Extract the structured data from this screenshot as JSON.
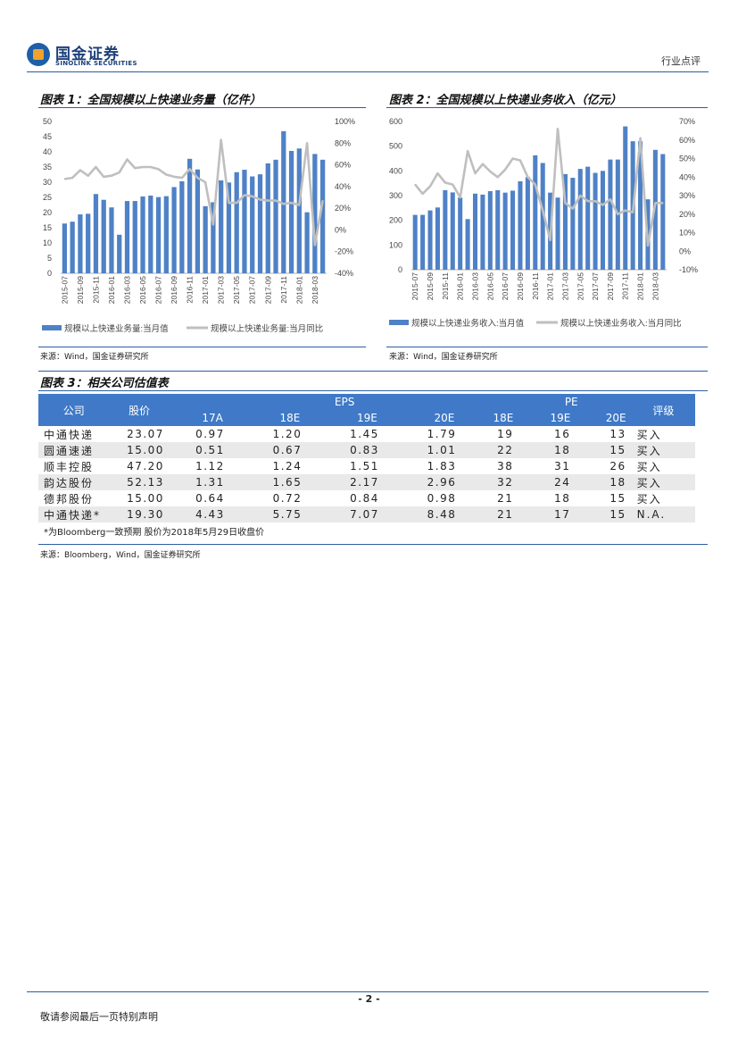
{
  "header": {
    "logo_cn": "国金证券",
    "logo_en": "SINOLINK SECURITIES",
    "doc_type": "行业点评"
  },
  "fig1": {
    "title": "图表 1：全国规模以上快递业务量（亿件）",
    "source": "来源：Wind，国金证券研究所",
    "chart_data": {
      "type": "bar",
      "categories": [
        "2015-07",
        "2015-08",
        "2015-09",
        "2015-10",
        "2015-11",
        "2015-12",
        "2016-01",
        "2016-02",
        "2016-03",
        "2016-04",
        "2016-05",
        "2016-06",
        "2016-07",
        "2016-08",
        "2016-09",
        "2016-10",
        "2016-11",
        "2016-12",
        "2017-01",
        "2017-02",
        "2017-03",
        "2017-04",
        "2017-05",
        "2017-06",
        "2017-07",
        "2017-08",
        "2017-09",
        "2017-10",
        "2017-11",
        "2017-12",
        "2018-01",
        "2018-02",
        "2018-03",
        "2018-04"
      ],
      "tick_labels": [
        "2015-07",
        "2015-09",
        "2015-11",
        "2016-01",
        "2016-03",
        "2016-05",
        "2016-07",
        "2016-09",
        "2016-11",
        "2017-01",
        "2017-03",
        "2017-05",
        "2017-07",
        "2017-09",
        "2017-11",
        "2018-01",
        "2018-03"
      ],
      "series": [
        {
          "name": "规模以上快递业务量:当月值",
          "axis": "left",
          "values": [
            16.4,
            17.0,
            19.4,
            19.6,
            26.1,
            24.2,
            21.7,
            12.7,
            23.8,
            23.8,
            25.3,
            25.6,
            25.1,
            25.4,
            28.4,
            30.3,
            37.7,
            34.2,
            22.1,
            23.4,
            30.6,
            29.9,
            33.3,
            34.1,
            31.9,
            32.6,
            36.2,
            37.4,
            46.8,
            40.3,
            41.1,
            20.1,
            39.3,
            37.4
          ]
        },
        {
          "name": "规模以上快递业务量:当月同比",
          "axis": "right",
          "values": [
            47,
            48,
            55,
            50,
            58,
            49,
            50,
            53,
            65,
            57,
            58,
            58,
            56,
            51,
            49,
            48,
            56,
            48,
            44,
            5,
            83,
            25,
            25,
            32,
            31,
            28,
            27,
            27,
            24,
            25,
            23,
            80,
            -14,
            27
          ]
        }
      ],
      "ylim_left": [
        0,
        50
      ],
      "yticks_left": [
        "50",
        "45",
        "40",
        "35",
        "30",
        "25",
        "20",
        "15",
        "10",
        "5",
        "0"
      ],
      "ylim_right": [
        -40,
        100
      ],
      "yticks_right": [
        "100%",
        "80%",
        "60%",
        "40%",
        "20%",
        "0%",
        "-20%",
        "-40%"
      ],
      "legend": [
        "规模以上快递业务量:当月值",
        "规模以上快递业务量:当月同比"
      ],
      "colors": {
        "bar": "#4f81c6",
        "line": "#bfbfbf"
      }
    }
  },
  "fig2": {
    "title": "图表 2：全国规模以上快递业务收入（亿元）",
    "source": "来源：Wind，国金证券研究所",
    "chart_data": {
      "type": "bar",
      "categories": [
        "2015-07",
        "2015-08",
        "2015-09",
        "2015-10",
        "2015-11",
        "2015-12",
        "2016-01",
        "2016-02",
        "2016-03",
        "2016-04",
        "2016-05",
        "2016-06",
        "2016-07",
        "2016-08",
        "2016-09",
        "2016-10",
        "2016-11",
        "2016-12",
        "2017-01",
        "2017-02",
        "2017-03",
        "2017-04",
        "2017-05",
        "2017-06",
        "2017-07",
        "2017-08",
        "2017-09",
        "2017-10",
        "2017-11",
        "2017-12",
        "2018-01",
        "2018-02",
        "2018-03",
        "2018-04"
      ],
      "tick_labels": [
        "2015-07",
        "2015-09",
        "2015-11",
        "2016-01",
        "2016-03",
        "2016-05",
        "2016-07",
        "2016-09",
        "2016-11",
        "2017-01",
        "2017-03",
        "2017-05",
        "2017-07",
        "2017-09",
        "2017-11",
        "2018-01",
        "2018-03"
      ],
      "series": [
        {
          "name": "规模以上快递业务收入:当月值",
          "axis": "left",
          "values": [
            222,
            222,
            240,
            252,
            322,
            313,
            292,
            205,
            308,
            304,
            318,
            322,
            312,
            320,
            358,
            375,
            463,
            432,
            312,
            292,
            387,
            372,
            408,
            417,
            392,
            400,
            446,
            446,
            580,
            520,
            520,
            285,
            485,
            468
          ]
        },
        {
          "name": "规模以上快递业务收入:当月同比",
          "axis": "right",
          "values": [
            36,
            31,
            35,
            42,
            37,
            36,
            29,
            54,
            42,
            47,
            43,
            40,
            44,
            50,
            49,
            40,
            36,
            22,
            6,
            66,
            26,
            23,
            30,
            27,
            27,
            25,
            28,
            20,
            22,
            21,
            61,
            3,
            26,
            26
          ]
        }
      ],
      "ylim_left": [
        0,
        600
      ],
      "yticks_left": [
        "600",
        "500",
        "400",
        "300",
        "200",
        "100",
        "0"
      ],
      "ylim_right": [
        -10,
        70
      ],
      "yticks_right": [
        "70%",
        "60%",
        "50%",
        "40%",
        "30%",
        "20%",
        "10%",
        "0%",
        "-10%"
      ],
      "legend": [
        "规模以上快递业务收入:当月值",
        "规模以上快递业务收入:当月同比"
      ],
      "colors": {
        "bar": "#4f81c6",
        "line": "#bfbfbf"
      }
    }
  },
  "fig3": {
    "title": "图表 3：相关公司估值表",
    "headers": {
      "company": "公司",
      "price": "股价",
      "eps": "EPS",
      "pe": "PE",
      "rating": "评级",
      "eps_years": [
        "17A",
        "18E",
        "19E",
        "20E"
      ],
      "pe_years": [
        "18E",
        "19E",
        "20E"
      ]
    },
    "rows": [
      {
        "company": "中通快递",
        "price": "23.07",
        "eps": [
          "0.97",
          "1.20",
          "1.45",
          "1.79"
        ],
        "pe": [
          "19",
          "16",
          "13"
        ],
        "rating": "买入"
      },
      {
        "company": "圆通速递",
        "price": "15.00",
        "eps": [
          "0.51",
          "0.67",
          "0.83",
          "1.01"
        ],
        "pe": [
          "22",
          "18",
          "15"
        ],
        "rating": "买入"
      },
      {
        "company": "顺丰控股",
        "price": "47.20",
        "eps": [
          "1.12",
          "1.24",
          "1.51",
          "1.83"
        ],
        "pe": [
          "38",
          "31",
          "26"
        ],
        "rating": "买入"
      },
      {
        "company": "韵达股份",
        "price": "52.13",
        "eps": [
          "1.31",
          "1.65",
          "2.17",
          "2.96"
        ],
        "pe": [
          "32",
          "24",
          "18"
        ],
        "rating": "买入"
      },
      {
        "company": "德邦股份",
        "price": "15.00",
        "eps": [
          "0.64",
          "0.72",
          "0.84",
          "0.98"
        ],
        "pe": [
          "21",
          "18",
          "15"
        ],
        "rating": "买入"
      },
      {
        "company": "中通快递*",
        "price": "19.30",
        "eps": [
          "4.43",
          "5.75",
          "7.07",
          "8.48"
        ],
        "pe": [
          "21",
          "17",
          "15"
        ],
        "rating": "N.A."
      }
    ],
    "note": "*为Bloomberg一致预期 股价为2018年5月29日收盘价",
    "source": "来源：Bloomberg，Wind，国金证券研究所"
  },
  "footer": {
    "page": "- 2 -",
    "disclaimer": "敬请参阅最后一页特别声明"
  }
}
